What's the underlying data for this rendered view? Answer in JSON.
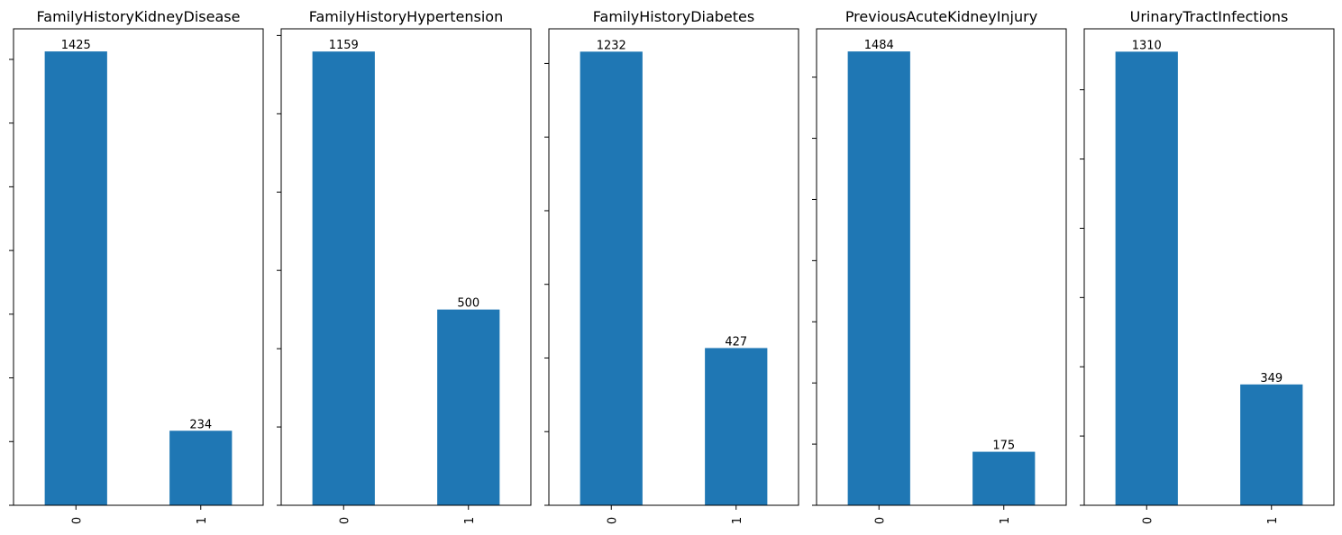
{
  "chart_data": [
    {
      "type": "bar",
      "title": "FamilyHistoryKidneyDisease",
      "categories": [
        "0",
        "1"
      ],
      "values": [
        1425,
        234
      ],
      "data_labels": [
        "1425",
        "234"
      ],
      "color": "#1f77b4",
      "ylim": [
        0,
        1496
      ],
      "grid": false
    },
    {
      "type": "bar",
      "title": "FamilyHistoryHypertension",
      "categories": [
        "0",
        "1"
      ],
      "values": [
        1159,
        500
      ],
      "data_labels": [
        "1159",
        "500"
      ],
      "color": "#1f77b4",
      "ylim": [
        0,
        1217
      ],
      "grid": false
    },
    {
      "type": "bar",
      "title": "FamilyHistoryDiabetes",
      "categories": [
        "0",
        "1"
      ],
      "values": [
        1232,
        427
      ],
      "data_labels": [
        "1232",
        "427"
      ],
      "color": "#1f77b4",
      "ylim": [
        0,
        1294
      ],
      "grid": false
    },
    {
      "type": "bar",
      "title": "PreviousAcuteKidneyInjury",
      "categories": [
        "0",
        "1"
      ],
      "values": [
        1484,
        175
      ],
      "data_labels": [
        "1484",
        "175"
      ],
      "color": "#1f77b4",
      "ylim": [
        0,
        1558
      ],
      "grid": false
    },
    {
      "type": "bar",
      "title": "UrinaryTractInfections",
      "categories": [
        "0",
        "1"
      ],
      "values": [
        1310,
        349
      ],
      "data_labels": [
        "1310",
        "349"
      ],
      "color": "#1f77b4",
      "ylim": [
        0,
        1376
      ],
      "grid": false
    }
  ]
}
